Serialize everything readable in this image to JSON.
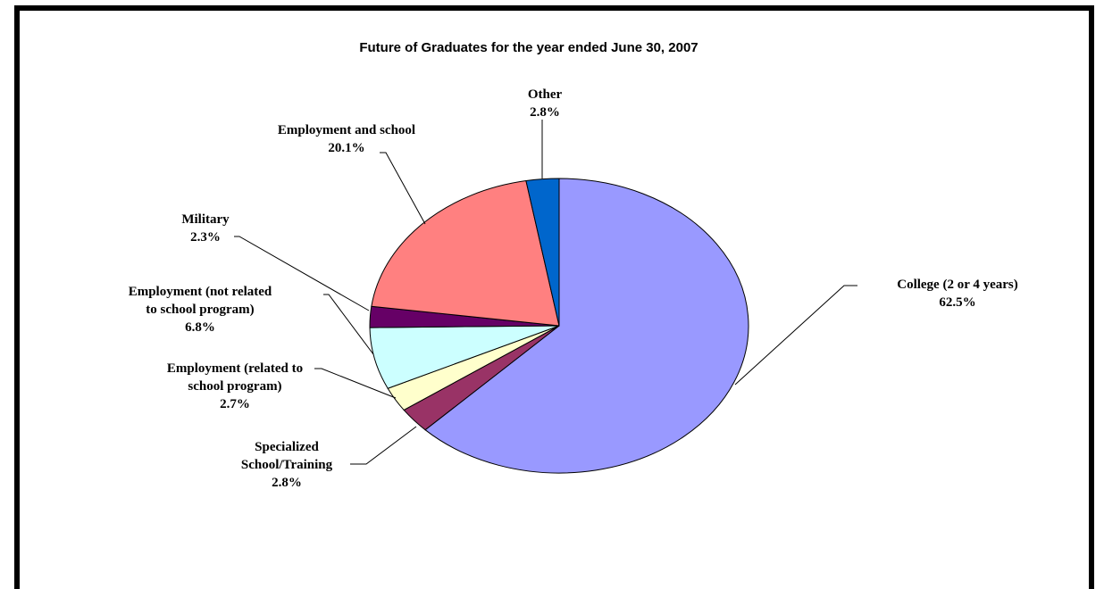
{
  "chart_data": {
    "type": "pie",
    "title": "Future of Graduates for the year ended June 30, 2007",
    "slices": [
      {
        "label_lines": [
          "College (2 or 4 years)"
        ],
        "value_text": "62.5%",
        "value": 62.5,
        "color": "#9999ff"
      },
      {
        "label_lines": [
          "Specialized",
          "School/Training"
        ],
        "value_text": "2.8%",
        "value": 2.8,
        "color": "#993366"
      },
      {
        "label_lines": [
          "Employment (related to",
          "school program)"
        ],
        "value_text": "2.7%",
        "value": 2.7,
        "color": "#ffffcc"
      },
      {
        "label_lines": [
          "Employment (not related",
          "to school program)"
        ],
        "value_text": "6.8%",
        "value": 6.8,
        "color": "#ccffff"
      },
      {
        "label_lines": [
          "Military"
        ],
        "value_text": "2.3%",
        "value": 2.3,
        "color": "#660066"
      },
      {
        "label_lines": [
          "Employment and school"
        ],
        "value_text": "20.1%",
        "value": 20.1,
        "color": "#ff8080"
      },
      {
        "label_lines": [
          "Other"
        ],
        "value_text": "2.8%",
        "value": 2.8,
        "color": "#0066cc"
      }
    ],
    "start_angle_deg": 0,
    "direction": "clockwise",
    "legend": "none",
    "border_color": "#000000"
  }
}
